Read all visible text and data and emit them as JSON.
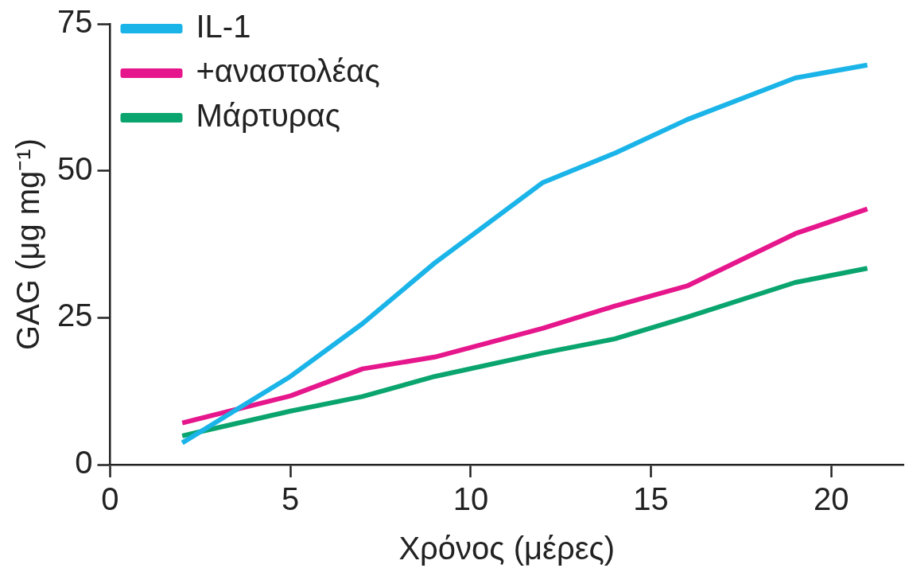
{
  "chart_data": {
    "type": "line",
    "xlabel": "Χρόνος (μέρες)",
    "ylabel": "GAG (μg mg⁻¹)",
    "x": [
      2,
      5,
      7,
      9,
      12,
      14,
      16,
      19,
      21
    ],
    "series": [
      {
        "name": "IL-1",
        "color": "#1ab4e8",
        "values": [
          3.7,
          15,
          24,
          34.3,
          48,
          53,
          58.7,
          65.8,
          68
        ]
      },
      {
        "name": "+αναστολέας",
        "color": "#e6168c",
        "values": [
          7.1,
          11.7,
          16.3,
          18.3,
          23.2,
          27,
          30.4,
          39.3,
          43.5
        ]
      },
      {
        "name": "Μάρτυρας",
        "color": "#0aa56e",
        "values": [
          4.9,
          9.1,
          11.6,
          15,
          19,
          21.4,
          25.1,
          31,
          33.4
        ]
      }
    ],
    "xlim": [
      0,
      22
    ],
    "xticks": [
      0,
      5,
      10,
      15,
      20
    ],
    "ylim": [
      0,
      75
    ],
    "yticks": [
      0,
      25,
      50,
      75
    ],
    "grid": false,
    "legend": "top left",
    "marker": "none",
    "line_style": "solid"
  }
}
